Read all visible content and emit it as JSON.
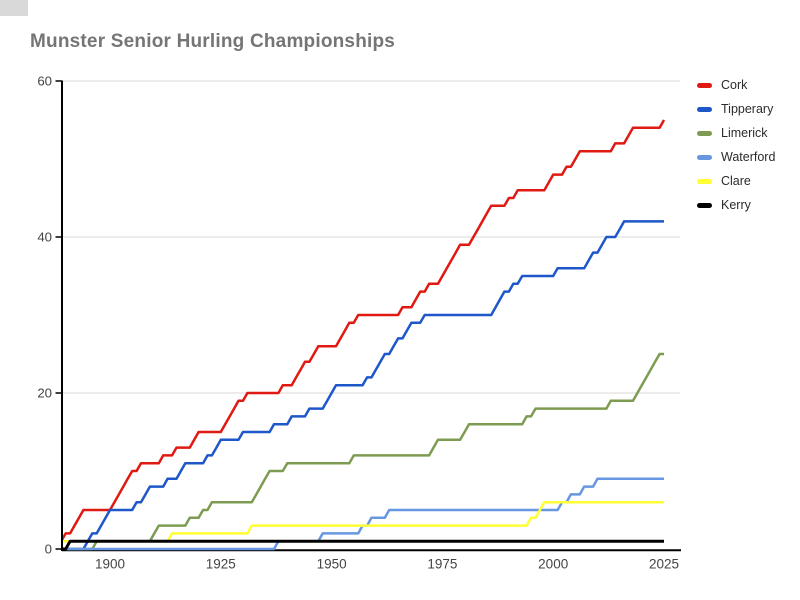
{
  "chart_data": {
    "type": "line",
    "title": "Munster Senior Hurling Championships",
    "xlabel": "",
    "ylabel": "",
    "x_ticks": [
      "1900",
      "1925",
      "1950",
      "1975",
      "2000",
      "2025"
    ],
    "y_ticks": [
      "0",
      "20",
      "40",
      "60"
    ],
    "x_range": [
      1889,
      2028
    ],
    "y_range": [
      0,
      60
    ],
    "grid": true,
    "legend_position": "right",
    "encoding": "cumulative titles per year; win_years lists each championship win read from the step chart",
    "series": [
      {
        "name": "Cork",
        "color": "#e01a12",
        "final_total": 55,
        "win_years": [
          1888,
          1890,
          1892,
          1893,
          1894,
          1901,
          1902,
          1903,
          1904,
          1905,
          1907,
          1912,
          1915,
          1919,
          1920,
          1926,
          1927,
          1928,
          1929,
          1931,
          1939,
          1942,
          1943,
          1944,
          1946,
          1947,
          1952,
          1953,
          1954,
          1956,
          1966,
          1969,
          1970,
          1972,
          1975,
          1976,
          1977,
          1978,
          1979,
          1982,
          1983,
          1984,
          1985,
          1986,
          1990,
          1992,
          1999,
          2000,
          2003,
          2005,
          2006,
          2014,
          2017,
          2018,
          2025
        ]
      },
      {
        "name": "Tipperary",
        "color": "#1e57c9",
        "final_total": 42,
        "win_years": [
          1895,
          1896,
          1898,
          1899,
          1900,
          1906,
          1908,
          1909,
          1913,
          1916,
          1917,
          1922,
          1924,
          1925,
          1930,
          1937,
          1941,
          1945,
          1949,
          1950,
          1951,
          1958,
          1960,
          1961,
          1962,
          1964,
          1965,
          1967,
          1968,
          1971,
          1987,
          1988,
          1989,
          1991,
          1993,
          2001,
          2008,
          2009,
          2011,
          2012,
          2015,
          2016
        ]
      },
      {
        "name": "Limerick",
        "color": "#7d9c52",
        "final_total": 25,
        "win_years": [
          1897,
          1910,
          1911,
          1918,
          1921,
          1923,
          1933,
          1934,
          1935,
          1936,
          1940,
          1955,
          1973,
          1974,
          1980,
          1981,
          1994,
          1996,
          2013,
          2019,
          2020,
          2021,
          2022,
          2023,
          2024
        ]
      },
      {
        "name": "Waterford",
        "color": "#6796e2",
        "final_total": 9,
        "win_years": [
          1938,
          1948,
          1957,
          1959,
          1963,
          2002,
          2004,
          2007,
          2010
        ]
      },
      {
        "name": "Clare",
        "color": "#ffff33",
        "final_total": 6,
        "win_years": [
          1889,
          1914,
          1932,
          1995,
          1997,
          1998
        ]
      },
      {
        "name": "Kerry",
        "color": "#000000",
        "final_total": 1,
        "win_years": [
          1891
        ]
      }
    ],
    "style": {
      "grid_color": "#d9d9d9",
      "axis_color": "#000000",
      "tick_label_color": "#444444",
      "title_color": "#757575",
      "background": "#ffffff"
    }
  }
}
